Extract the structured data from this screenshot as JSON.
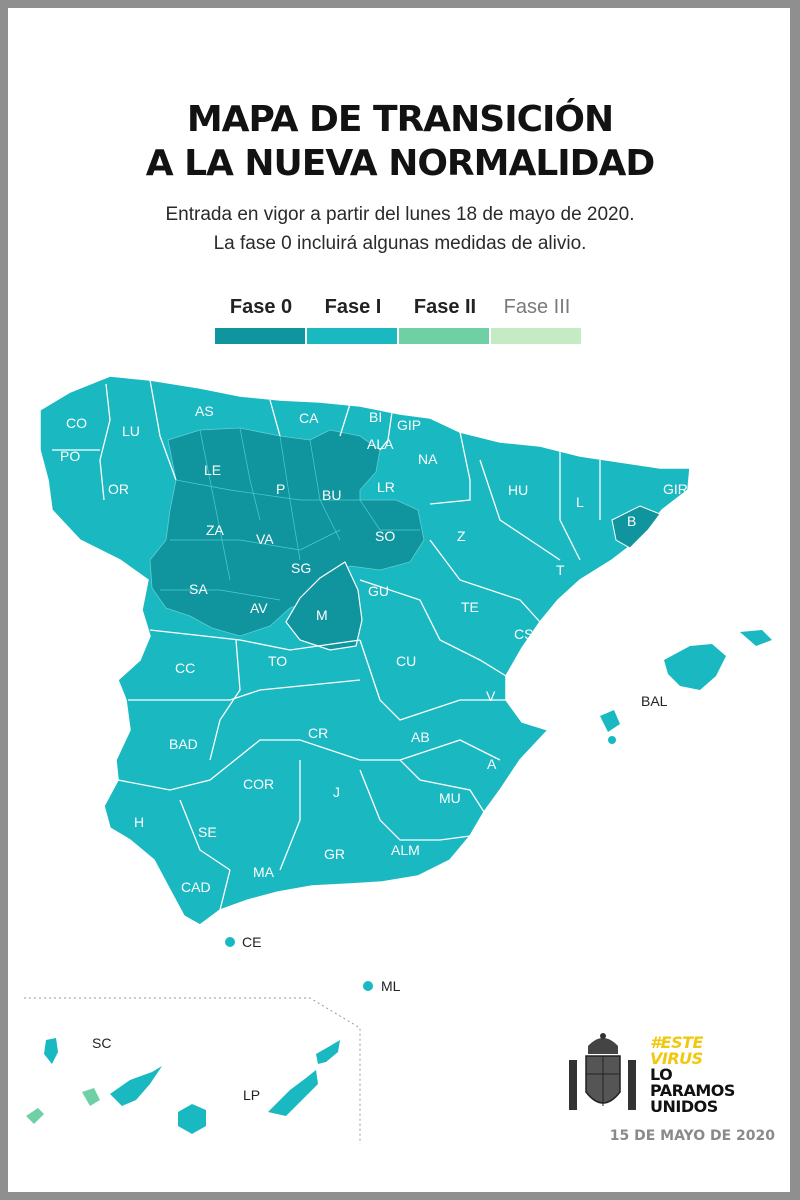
{
  "title": {
    "line1": "MAPA DE TRANSICIÓN",
    "line2": "A LA NUEVA NORMALIDAD"
  },
  "subtitle": {
    "line1": "Entrada en vigor a partir del lunes 18 de mayo de 2020.",
    "line2": "La fase 0 incluirá algunas medidas de alivio."
  },
  "legend": [
    {
      "label": "Fase 0",
      "color": "#10949e"
    },
    {
      "label": "Fase I",
      "color": "#1ab8c0"
    },
    {
      "label": "Fase II",
      "color": "#6fd0a6"
    },
    {
      "label": "Fase III",
      "color": "#c4ebc4"
    }
  ],
  "colors": {
    "phase0": "#10949e",
    "phase1": "#1ab8c0",
    "phase2": "#6fd0a6",
    "phase3": "#c4ebc4",
    "border": "#ffffff"
  },
  "provinces": {
    "CO": "CO",
    "LU": "LU",
    "AS": "AS",
    "CA": "CA",
    "BI": "BI",
    "GIP": "GIP",
    "PO": "PO",
    "OR": "OR",
    "LE": "LE",
    "P": "P",
    "BU": "BU",
    "ALA": "ALA",
    "NA": "NA",
    "LR": "LR",
    "HU": "HU",
    "L": "L",
    "GIR": "GIR",
    "B": "B",
    "ZA": "ZA",
    "VA": "VA",
    "SO": "SO",
    "Z": "Z",
    "T": "T",
    "SA": "SA",
    "SG": "SG",
    "GU": "GU",
    "TE": "TE",
    "AV": "AV",
    "M": "M",
    "CS": "CS",
    "CC": "CC",
    "TO": "TO",
    "CU": "CU",
    "V": "V",
    "BAL": "BAL",
    "BAD": "BAD",
    "CR": "CR",
    "AB": "AB",
    "A": "A",
    "COR": "COR",
    "J": "J",
    "MU": "MU",
    "H": "H",
    "SE": "SE",
    "GR": "GR",
    "ALM": "ALM",
    "MA": "MA",
    "CAD": "CAD",
    "CE": "CE",
    "ML": "ML",
    "SC": "SC",
    "LP": "LP"
  },
  "logo": {
    "line1": "#ESTE",
    "line2": "VIRUS",
    "line3": "LO",
    "line4": "PARAMOS",
    "line5": "UNIDOS"
  },
  "date": "15 DE MAYO DE 2020"
}
